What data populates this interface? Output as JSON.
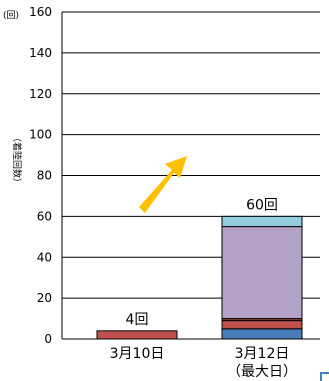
{
  "chart_data": {
    "type": "bar",
    "stacked": true,
    "y_unit": "(回)",
    "ylabel": "（着陸回数）",
    "ylim": [
      0,
      160
    ],
    "y_ticks": [
      0,
      20,
      40,
      60,
      80,
      100,
      120,
      140,
      160
    ],
    "grid": true,
    "categories": [
      {
        "line1": "3月10日",
        "line2": ""
      },
      {
        "line1": "3月12日",
        "line2": "（最大日）"
      }
    ],
    "series": [
      {
        "color": "#4a7ebb",
        "values": [
          0,
          5
        ]
      },
      {
        "color": "#c0504d",
        "values": [
          4,
          4
        ]
      },
      {
        "color": "#8a3f3c",
        "values": [
          0,
          1
        ]
      },
      {
        "color": "#b3a2c7",
        "values": [
          0,
          45
        ]
      },
      {
        "color": "#93cddd",
        "values": [
          0,
          5
        ]
      }
    ],
    "totals": [
      "4回",
      "60回"
    ],
    "arrow_color": "#ffc000"
  }
}
